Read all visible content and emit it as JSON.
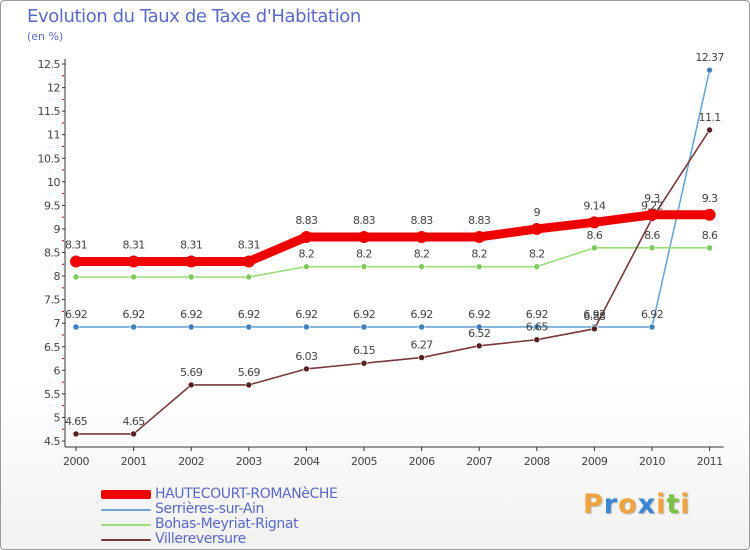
{
  "title": "Evolution du Taux de Taxe d'Habitation",
  "unit_label": "(en %)",
  "brand": {
    "letters": [
      "P",
      "r",
      "o",
      "x",
      "i",
      "t",
      "i"
    ],
    "colors": [
      "#f0a23c",
      "#3a86d6",
      "#f0a23c",
      "#3a86d6",
      "#f0a23c",
      "#7cc242",
      "#f0a23c"
    ]
  },
  "chart_data": {
    "type": "line",
    "title": "Evolution du Taux de Taxe d'Habitation",
    "ylabel": "(en %)",
    "xlabel": "",
    "x": [
      "2000",
      "2001",
      "2002",
      "2003",
      "2004",
      "2005",
      "2006",
      "2007",
      "2008",
      "2009",
      "2010",
      "2011"
    ],
    "ylim": [
      4.5,
      12.5
    ],
    "yticks": [
      "4.5",
      "5",
      "5.5",
      "6",
      "6.5",
      "7",
      "7.5",
      "8",
      "8.5",
      "9",
      "9.5",
      "10",
      "10.5",
      "11",
      "11.5",
      "12",
      "12.5"
    ],
    "grid": false,
    "legend_position": "bottom-left",
    "series": [
      {
        "name": "HAUTECOURT-ROMANèCHE",
        "color": "#ee0000",
        "emphasis": true,
        "values": [
          8.31,
          8.31,
          8.31,
          8.31,
          8.83,
          8.83,
          8.83,
          8.83,
          9,
          9.14,
          9.3,
          9.3
        ],
        "labels": [
          "8.31",
          "8.31",
          "8.31",
          "8.31",
          "8.83",
          "8.83",
          "8.83",
          "8.83",
          "9",
          "9.14",
          "9.3",
          "9.3"
        ]
      },
      {
        "name": "Serrières-sur-Ain",
        "color": "#6aa6d8",
        "marker": "#3f7fc0",
        "values": [
          6.92,
          6.92,
          6.92,
          6.92,
          6.92,
          6.92,
          6.92,
          6.92,
          6.92,
          6.92,
          6.92,
          12.37
        ],
        "labels": [
          "6.92",
          "6.92",
          "6.92",
          "6.92",
          "6.92",
          "6.92",
          "6.92",
          "6.92",
          "6.92",
          "6.92",
          "6.92",
          "12.37"
        ]
      },
      {
        "name": "Bohas-Meyriat-Rignat",
        "color": "#99dd77",
        "marker": "#7dc95a",
        "values": [
          7.98,
          7.98,
          7.98,
          7.98,
          8.2,
          8.2,
          8.2,
          8.2,
          8.2,
          8.6,
          8.6,
          8.6
        ],
        "labels": [
          "",
          "",
          "",
          "",
          "8.2",
          "8.2",
          "8.2",
          "8.2",
          "8.2",
          "8.6",
          "8.6",
          "8.6"
        ]
      },
      {
        "name": "Villereversure",
        "color": "#7a3a3a",
        "marker": "#5a1f1f",
        "values": [
          4.65,
          4.65,
          5.69,
          5.69,
          6.03,
          6.15,
          6.27,
          6.52,
          6.65,
          6.88,
          9.22,
          11.1
        ],
        "labels": [
          "4.65",
          "4.65",
          "5.69",
          "5.69",
          "6.03",
          "6.15",
          "6.27",
          "6.52",
          "6.65",
          "6.88",
          "9.22",
          "11.1"
        ]
      }
    ]
  }
}
